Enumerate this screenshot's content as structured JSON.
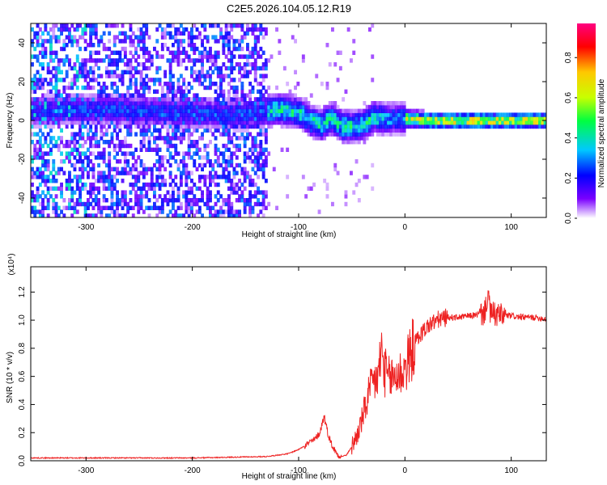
{
  "title": "C2E5.2026.104.05.12.R19",
  "chart_data": [
    {
      "type": "heatmap",
      "xlabel": "Height of straight line (km)",
      "ylabel": "Frequency (Hz)",
      "xlim": [
        -352,
        133
      ],
      "ylim": [
        -50,
        50
      ],
      "x_ticks": [
        -300,
        -200,
        -100,
        0,
        100
      ],
      "y_ticks": [
        -40,
        -20,
        0,
        20,
        40
      ],
      "colorbar": {
        "label": "Normalized spectral amplitude",
        "range": [
          0,
          0.97
        ],
        "ticks": [
          0.0,
          0.2,
          0.4,
          0.6,
          0.8
        ],
        "tick_labels": [
          "0.0",
          "0.2",
          "0.4",
          "0.6",
          "0.8"
        ],
        "colormap": [
          "#ffffff",
          "#7a00ff",
          "#0000ff",
          "#00c8ff",
          "#00ff40",
          "#c8ff00",
          "#ffc800",
          "#ff0000",
          "#ff0080"
        ]
      },
      "ridge_x": [
        -352,
        -300,
        -250,
        -200,
        -150,
        -120,
        -100,
        -90,
        -80,
        -70,
        -60,
        -50,
        -40,
        -30,
        -20,
        -10,
        0,
        20,
        60,
        100,
        133
      ],
      "ridge_y": [
        5,
        6,
        5,
        4,
        3,
        6,
        4,
        0,
        -2,
        1,
        -3,
        -3,
        -2,
        2,
        1,
        1,
        1,
        0,
        0,
        0,
        0
      ]
    },
    {
      "type": "line",
      "xlabel": "Height of straight line (km)",
      "ylabel": "SNR (10 * v/v)",
      "y_multiplier": "(x10⁴)",
      "xlim": [
        -352,
        133
      ],
      "ylim": [
        0,
        1.38
      ],
      "x_ticks": [
        -300,
        -200,
        -100,
        0,
        100
      ],
      "y_ticks": [
        0.0,
        0.2,
        0.4,
        0.6,
        0.8,
        1.0,
        1.2
      ],
      "y_tick_labels": [
        "0.0",
        "0.2",
        "0.4",
        "0.6",
        "0.8",
        "1.0",
        "1.2"
      ],
      "series": [
        {
          "color": "#ee2222",
          "x": [
            -352,
            -300,
            -200,
            -130,
            -110,
            -100,
            -92,
            -85,
            -80,
            -76,
            -72,
            -68,
            -64,
            -60,
            -55,
            -50,
            -45,
            -40,
            -35,
            -30,
            -25,
            -22,
            -20,
            -15,
            -10,
            -5,
            0,
            5,
            10,
            20,
            30,
            40,
            50,
            60,
            70,
            75,
            78,
            80,
            85,
            90,
            100,
            110,
            120,
            133
          ],
          "y": [
            0.02,
            0.02,
            0.02,
            0.03,
            0.05,
            0.08,
            0.12,
            0.15,
            0.2,
            0.32,
            0.18,
            0.1,
            0.05,
            0.03,
            0.04,
            0.1,
            0.18,
            0.3,
            0.45,
            0.55,
            0.6,
            0.8,
            0.65,
            0.58,
            0.6,
            0.62,
            0.65,
            0.75,
            0.85,
            0.95,
            1.0,
            1.02,
            1.02,
            1.03,
            1.04,
            1.05,
            1.2,
            1.05,
            1.04,
            1.03,
            1.03,
            1.02,
            1.02,
            1.01
          ]
        }
      ]
    }
  ]
}
